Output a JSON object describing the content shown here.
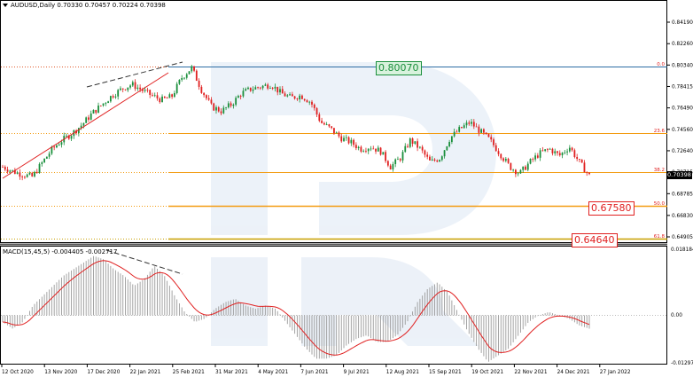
{
  "symbol_header": {
    "menu_icon": "triangle-down-icon",
    "text": "AUDUSD,Daily  0.70330 0.70457 0.70224 0.70398"
  },
  "macd_header": "MACD(15,45,5) -0.004405 -0.002717",
  "price_axis": {
    "ticks": [
      "0.84190",
      "0.82260",
      "0.80340",
      "0.78415",
      "0.76490",
      "0.74560",
      "0.72640",
      "0.70715",
      "0.68785",
      "0.66830",
      "0.64905"
    ],
    "current_price": "0.70398"
  },
  "macd_axis": {
    "ticks": [
      "0.018184",
      "0.00",
      "-0.012979"
    ]
  },
  "time_axis": [
    "12 Oct 2020",
    "13 Nov 2020",
    "17 Dec 2020",
    "22 Jan 2021",
    "25 Feb 2021",
    "31 Mar 2021",
    "4 May 2021",
    "7 Jun 2021",
    "9 Jul 2021",
    "12 Aug 2021",
    "15 Sep 2021",
    "19 Oct 2021",
    "22 Nov 2021",
    "24 Dec 2021",
    "27 Jan 2022"
  ],
  "fib_labels": [
    "0.0",
    "23.6",
    "38.2",
    "50.0",
    "61.8"
  ],
  "price_boxes": {
    "level_high": "0.80070",
    "level_50": "0.67580",
    "level_618": "0.64640"
  },
  "colors": {
    "up": "#1a8f3c",
    "down": "#e02020",
    "fib_base": "#2e6da4",
    "fib": "#f39c12",
    "macd_signal": "#e02020",
    "macd_hist": "#9a9a9a"
  },
  "chart_data": [
    {
      "type": "candlestick",
      "title": "AUDUSD,Daily",
      "ylim": [
        0.64,
        0.85
      ],
      "current": 0.70398,
      "ohlc_last": {
        "open": 0.7033,
        "high": 0.70457,
        "low": 0.70224,
        "close": 0.70398
      },
      "fibonacci_levels": [
        {
          "label": "0.0",
          "value": 0.8007
        },
        {
          "label": "23.6",
          "value": 0.7395
        },
        {
          "label": "38.2",
          "value": 0.705
        },
        {
          "label": "50.0",
          "value": 0.6758
        },
        {
          "label": "61.8",
          "value": 0.6464
        }
      ],
      "approx_closes": [
        0.712,
        0.708,
        0.705,
        0.703,
        0.716,
        0.728,
        0.736,
        0.742,
        0.75,
        0.76,
        0.768,
        0.776,
        0.782,
        0.786,
        0.781,
        0.776,
        0.772,
        0.775,
        0.792,
        0.801,
        0.781,
        0.766,
        0.762,
        0.768,
        0.778,
        0.782,
        0.784,
        0.786,
        0.778,
        0.774,
        0.776,
        0.77,
        0.752,
        0.746,
        0.738,
        0.734,
        0.728,
        0.73,
        0.726,
        0.712,
        0.72,
        0.736,
        0.728,
        0.716,
        0.72,
        0.738,
        0.746,
        0.752,
        0.744,
        0.736,
        0.724,
        0.712,
        0.706,
        0.716,
        0.724,
        0.728,
        0.722,
        0.73,
        0.716,
        0.704
      ]
    },
    {
      "type": "line",
      "title": "MACD(15,45,5)",
      "values_last": {
        "macd": -0.004405,
        "signal": -0.002717
      },
      "ylim": [
        -0.015,
        0.02
      ],
      "approx_macd": [
        -0.002,
        -0.004,
        -0.002,
        0.003,
        0.006,
        0.009,
        0.012,
        0.014,
        0.016,
        0.018,
        0.017,
        0.014,
        0.012,
        0.009,
        0.011,
        0.015,
        0.012,
        0.006,
        0.001,
        -0.002,
        -0.001,
        0.002,
        0.004,
        0.005,
        0.003,
        0.002,
        0.003,
        0.002,
        -0.002,
        -0.006,
        -0.01,
        -0.013,
        -0.013,
        -0.012,
        -0.009,
        -0.007,
        -0.006,
        -0.008,
        -0.008,
        -0.006,
        -0.002,
        0.004,
        0.008,
        0.01,
        0.007,
        0.001,
        -0.005,
        -0.01,
        -0.014,
        -0.012,
        -0.01,
        -0.006,
        -0.002,
        0.0,
        0.001,
        0.0,
        -0.001,
        -0.003,
        -0.004
      ]
    }
  ],
  "annotations": {
    "divergence": "bearish"
  }
}
